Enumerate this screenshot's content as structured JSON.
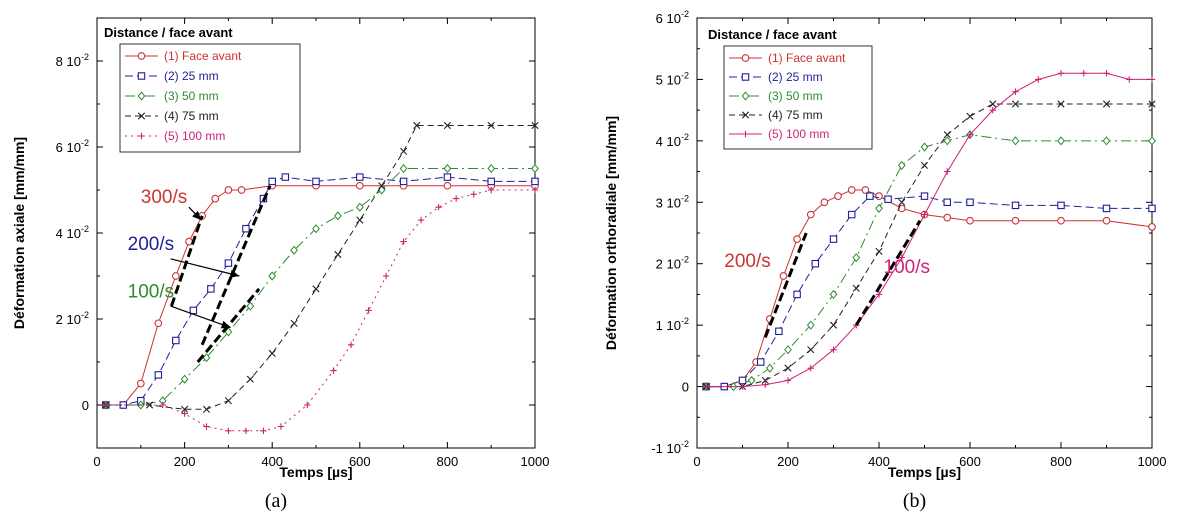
{
  "chart_data": [
    {
      "type": "line",
      "caption": "(a)",
      "xlabel": "Temps [µs]",
      "ylabel": "Déformation axiale [mm/mm]",
      "xlim": [
        0,
        1000
      ],
      "ylim": [
        -0.01,
        0.09
      ],
      "xticks": [
        0,
        200,
        400,
        600,
        800,
        1000
      ],
      "yticks": [
        {
          "value": 0,
          "label": "0",
          "exp": ""
        },
        {
          "value": 0.02,
          "label": "2 10",
          "exp": "-2"
        },
        {
          "value": 0.04,
          "label": "4 10",
          "exp": "-2"
        },
        {
          "value": 0.06,
          "label": "6 10",
          "exp": "-2"
        },
        {
          "value": 0.08,
          "label": "8 10",
          "exp": "-2"
        }
      ],
      "legend_title": "Distance / face avant",
      "legend_position": "top-left",
      "series": [
        {
          "name": "(1) Face avant",
          "color": "#cc3333",
          "marker": "circle",
          "dash": "",
          "points": [
            [
              20,
              0
            ],
            [
              60,
              0
            ],
            [
              100,
              0.005
            ],
            [
              140,
              0.019
            ],
            [
              180,
              0.03
            ],
            [
              210,
              0.038
            ],
            [
              240,
              0.044
            ],
            [
              270,
              0.048
            ],
            [
              300,
              0.05
            ],
            [
              330,
              0.05
            ],
            [
              400,
              0.051
            ],
            [
              500,
              0.051
            ],
            [
              600,
              0.051
            ],
            [
              700,
              0.051
            ],
            [
              800,
              0.051
            ],
            [
              900,
              0.051
            ],
            [
              1000,
              0.051
            ]
          ]
        },
        {
          "name": "(2) 25 mm",
          "color": "#1f1f99",
          "marker": "square",
          "dash": "8,4",
          "points": [
            [
              20,
              0
            ],
            [
              60,
              0
            ],
            [
              100,
              0.001
            ],
            [
              140,
              0.007
            ],
            [
              180,
              0.015
            ],
            [
              220,
              0.022
            ],
            [
              260,
              0.027
            ],
            [
              300,
              0.033
            ],
            [
              340,
              0.041
            ],
            [
              380,
              0.048
            ],
            [
              400,
              0.052
            ],
            [
              430,
              0.053
            ],
            [
              500,
              0.052
            ],
            [
              600,
              0.053
            ],
            [
              700,
              0.052
            ],
            [
              800,
              0.053
            ],
            [
              900,
              0.052
            ],
            [
              1000,
              0.052
            ]
          ]
        },
        {
          "name": "(3) 50 mm",
          "color": "#2e8b2e",
          "marker": "diamond",
          "dash": "10,4,2,4",
          "points": [
            [
              20,
              0
            ],
            [
              100,
              0
            ],
            [
              150,
              0.001
            ],
            [
              200,
              0.006
            ],
            [
              250,
              0.011
            ],
            [
              300,
              0.017
            ],
            [
              350,
              0.023
            ],
            [
              400,
              0.03
            ],
            [
              450,
              0.036
            ],
            [
              500,
              0.041
            ],
            [
              550,
              0.044
            ],
            [
              600,
              0.046
            ],
            [
              650,
              0.05
            ],
            [
              700,
              0.055
            ],
            [
              800,
              0.055
            ],
            [
              900,
              0.055
            ],
            [
              1000,
              0.055
            ]
          ]
        },
        {
          "name": "(4) 75 mm",
          "color": "#222222",
          "marker": "x",
          "dash": "6,4",
          "points": [
            [
              20,
              0
            ],
            [
              120,
              0
            ],
            [
              200,
              -0.001
            ],
            [
              250,
              -0.001
            ],
            [
              300,
              0.001
            ],
            [
              350,
              0.006
            ],
            [
              400,
              0.012
            ],
            [
              450,
              0.019
            ],
            [
              500,
              0.027
            ],
            [
              550,
              0.035
            ],
            [
              600,
              0.043
            ],
            [
              650,
              0.051
            ],
            [
              700,
              0.059
            ],
            [
              730,
              0.065
            ],
            [
              800,
              0.065
            ],
            [
              900,
              0.065
            ],
            [
              1000,
              0.065
            ]
          ]
        },
        {
          "name": "(5) 100 mm",
          "color": "#cc2277",
          "marker": "plus",
          "dash": "2,4",
          "points": [
            [
              20,
              0
            ],
            [
              150,
              0
            ],
            [
              200,
              -0.002
            ],
            [
              250,
              -0.005
            ],
            [
              300,
              -0.006
            ],
            [
              340,
              -0.006
            ],
            [
              380,
              -0.006
            ],
            [
              420,
              -0.005
            ],
            [
              480,
              0.0
            ],
            [
              540,
              0.008
            ],
            [
              580,
              0.014
            ],
            [
              620,
              0.022
            ],
            [
              660,
              0.03
            ],
            [
              700,
              0.038
            ],
            [
              740,
              0.043
            ],
            [
              780,
              0.046
            ],
            [
              820,
              0.048
            ],
            [
              860,
              0.049
            ],
            [
              900,
              0.05
            ],
            [
              1000,
              0.05
            ]
          ]
        }
      ],
      "annotations": [
        {
          "text": "300/s",
          "color": "#cc3333",
          "x": 100,
          "y": 0.047
        },
        {
          "text": "200/s",
          "color": "#1f1f99",
          "x": 70,
          "y": 0.036
        },
        {
          "text": "100/s",
          "color": "#2e8b2e",
          "x": 70,
          "y": 0.025
        }
      ],
      "arrows": [
        {
          "from": [
            210,
            0.046
          ],
          "to": [
            238,
            0.043
          ]
        },
        {
          "from": [
            168,
            0.034
          ],
          "to": [
            325,
            0.03
          ]
        },
        {
          "from": [
            168,
            0.023
          ],
          "to": [
            305,
            0.018
          ]
        }
      ],
      "fit_segments": [
        {
          "from": [
            170,
            0.023
          ],
          "to": [
            240,
            0.044
          ]
        },
        {
          "from": [
            240,
            0.014
          ],
          "to": [
            395,
            0.051
          ]
        },
        {
          "from": [
            230,
            0.01
          ],
          "to": [
            370,
            0.027
          ]
        }
      ]
    },
    {
      "type": "line",
      "caption": "(b)",
      "xlabel": "Temps [µs]",
      "ylabel": "Déformation orthoradiale [mm/mm]",
      "xlim": [
        0,
        1000
      ],
      "ylim": [
        -0.01,
        0.06
      ],
      "xticks": [
        0,
        200,
        400,
        600,
        800,
        1000
      ],
      "yticks": [
        {
          "value": -0.01,
          "label": "-1 10",
          "exp": "-2"
        },
        {
          "value": 0,
          "label": "0",
          "exp": ""
        },
        {
          "value": 0.01,
          "label": "1 10",
          "exp": "-2"
        },
        {
          "value": 0.02,
          "label": "2 10",
          "exp": "-2"
        },
        {
          "value": 0.03,
          "label": "3 10",
          "exp": "-2"
        },
        {
          "value": 0.04,
          "label": "4 10",
          "exp": "-2"
        },
        {
          "value": 0.05,
          "label": "5 10",
          "exp": "-2"
        },
        {
          "value": 0.06,
          "label": "6 10",
          "exp": "-2"
        }
      ],
      "legend_title": "Distance / face avant",
      "legend_position": "top-left",
      "series": [
        {
          "name": "(1) Face avant",
          "color": "#cc3333",
          "marker": "circle",
          "dash": "",
          "points": [
            [
              20,
              0
            ],
            [
              60,
              0
            ],
            [
              100,
              0.001
            ],
            [
              130,
              0.004
            ],
            [
              160,
              0.011
            ],
            [
              190,
              0.018
            ],
            [
              220,
              0.024
            ],
            [
              250,
              0.028
            ],
            [
              280,
              0.03
            ],
            [
              310,
              0.031
            ],
            [
              340,
              0.032
            ],
            [
              370,
              0.032
            ],
            [
              400,
              0.031
            ],
            [
              450,
              0.029
            ],
            [
              500,
              0.028
            ],
            [
              550,
              0.0275
            ],
            [
              600,
              0.027
            ],
            [
              700,
              0.027
            ],
            [
              800,
              0.027
            ],
            [
              900,
              0.027
            ],
            [
              1000,
              0.026
            ]
          ]
        },
        {
          "name": "(2) 25 mm",
          "color": "#1f1f99",
          "marker": "square",
          "dash": "8,4",
          "points": [
            [
              20,
              0
            ],
            [
              60,
              0
            ],
            [
              100,
              0.001
            ],
            [
              140,
              0.004
            ],
            [
              180,
              0.009
            ],
            [
              220,
              0.015
            ],
            [
              260,
              0.02
            ],
            [
              300,
              0.024
            ],
            [
              340,
              0.028
            ],
            [
              380,
              0.031
            ],
            [
              420,
              0.0305
            ],
            [
              500,
              0.031
            ],
            [
              550,
              0.03
            ],
            [
              600,
              0.03
            ],
            [
              700,
              0.0295
            ],
            [
              800,
              0.0295
            ],
            [
              900,
              0.029
            ],
            [
              1000,
              0.029
            ]
          ]
        },
        {
          "name": "(3) 50 mm",
          "color": "#2e8b2e",
          "marker": "diamond",
          "dash": "10,4,2,4",
          "points": [
            [
              20,
              0
            ],
            [
              80,
              0
            ],
            [
              120,
              0.001
            ],
            [
              160,
              0.003
            ],
            [
              200,
              0.006
            ],
            [
              250,
              0.01
            ],
            [
              300,
              0.015
            ],
            [
              350,
              0.021
            ],
            [
              400,
              0.029
            ],
            [
              450,
              0.036
            ],
            [
              500,
              0.039
            ],
            [
              550,
              0.04
            ],
            [
              600,
              0.041
            ],
            [
              700,
              0.04
            ],
            [
              800,
              0.04
            ],
            [
              900,
              0.04
            ],
            [
              1000,
              0.04
            ]
          ]
        },
        {
          "name": "(4) 75 mm",
          "color": "#222222",
          "marker": "x",
          "dash": "6,4",
          "points": [
            [
              20,
              0
            ],
            [
              100,
              0
            ],
            [
              150,
              0.001
            ],
            [
              200,
              0.003
            ],
            [
              250,
              0.006
            ],
            [
              300,
              0.01
            ],
            [
              350,
              0.016
            ],
            [
              400,
              0.022
            ],
            [
              450,
              0.03
            ],
            [
              500,
              0.036
            ],
            [
              550,
              0.041
            ],
            [
              600,
              0.044
            ],
            [
              650,
              0.046
            ],
            [
              700,
              0.046
            ],
            [
              800,
              0.046
            ],
            [
              900,
              0.046
            ],
            [
              1000,
              0.046
            ]
          ]
        },
        {
          "name": "(5) 100 mm",
          "color": "#cc2277",
          "marker": "plus",
          "dash": "",
          "points": [
            [
              20,
              0
            ],
            [
              100,
              0
            ],
            [
              150,
              0.0003
            ],
            [
              200,
              0.001
            ],
            [
              250,
              0.003
            ],
            [
              300,
              0.006
            ],
            [
              350,
              0.01
            ],
            [
              400,
              0.015
            ],
            [
              450,
              0.021
            ],
            [
              500,
              0.028
            ],
            [
              550,
              0.035
            ],
            [
              600,
              0.041
            ],
            [
              650,
              0.045
            ],
            [
              700,
              0.048
            ],
            [
              750,
              0.05
            ],
            [
              800,
              0.051
            ],
            [
              850,
              0.051
            ],
            [
              900,
              0.051
            ],
            [
              950,
              0.05
            ],
            [
              1000,
              0.05
            ]
          ]
        }
      ],
      "annotations": [
        {
          "text": "200/s",
          "color": "#cc3333",
          "x": 60,
          "y": 0.0195
        },
        {
          "text": "100/s",
          "color": "#cc2277",
          "x": 410,
          "y": 0.0185
        }
      ],
      "arrows": [],
      "fit_segments": [
        {
          "from": [
            150,
            0.008
          ],
          "to": [
            240,
            0.025
          ]
        },
        {
          "from": [
            350,
            0.01
          ],
          "to": [
            490,
            0.027
          ]
        }
      ]
    }
  ]
}
